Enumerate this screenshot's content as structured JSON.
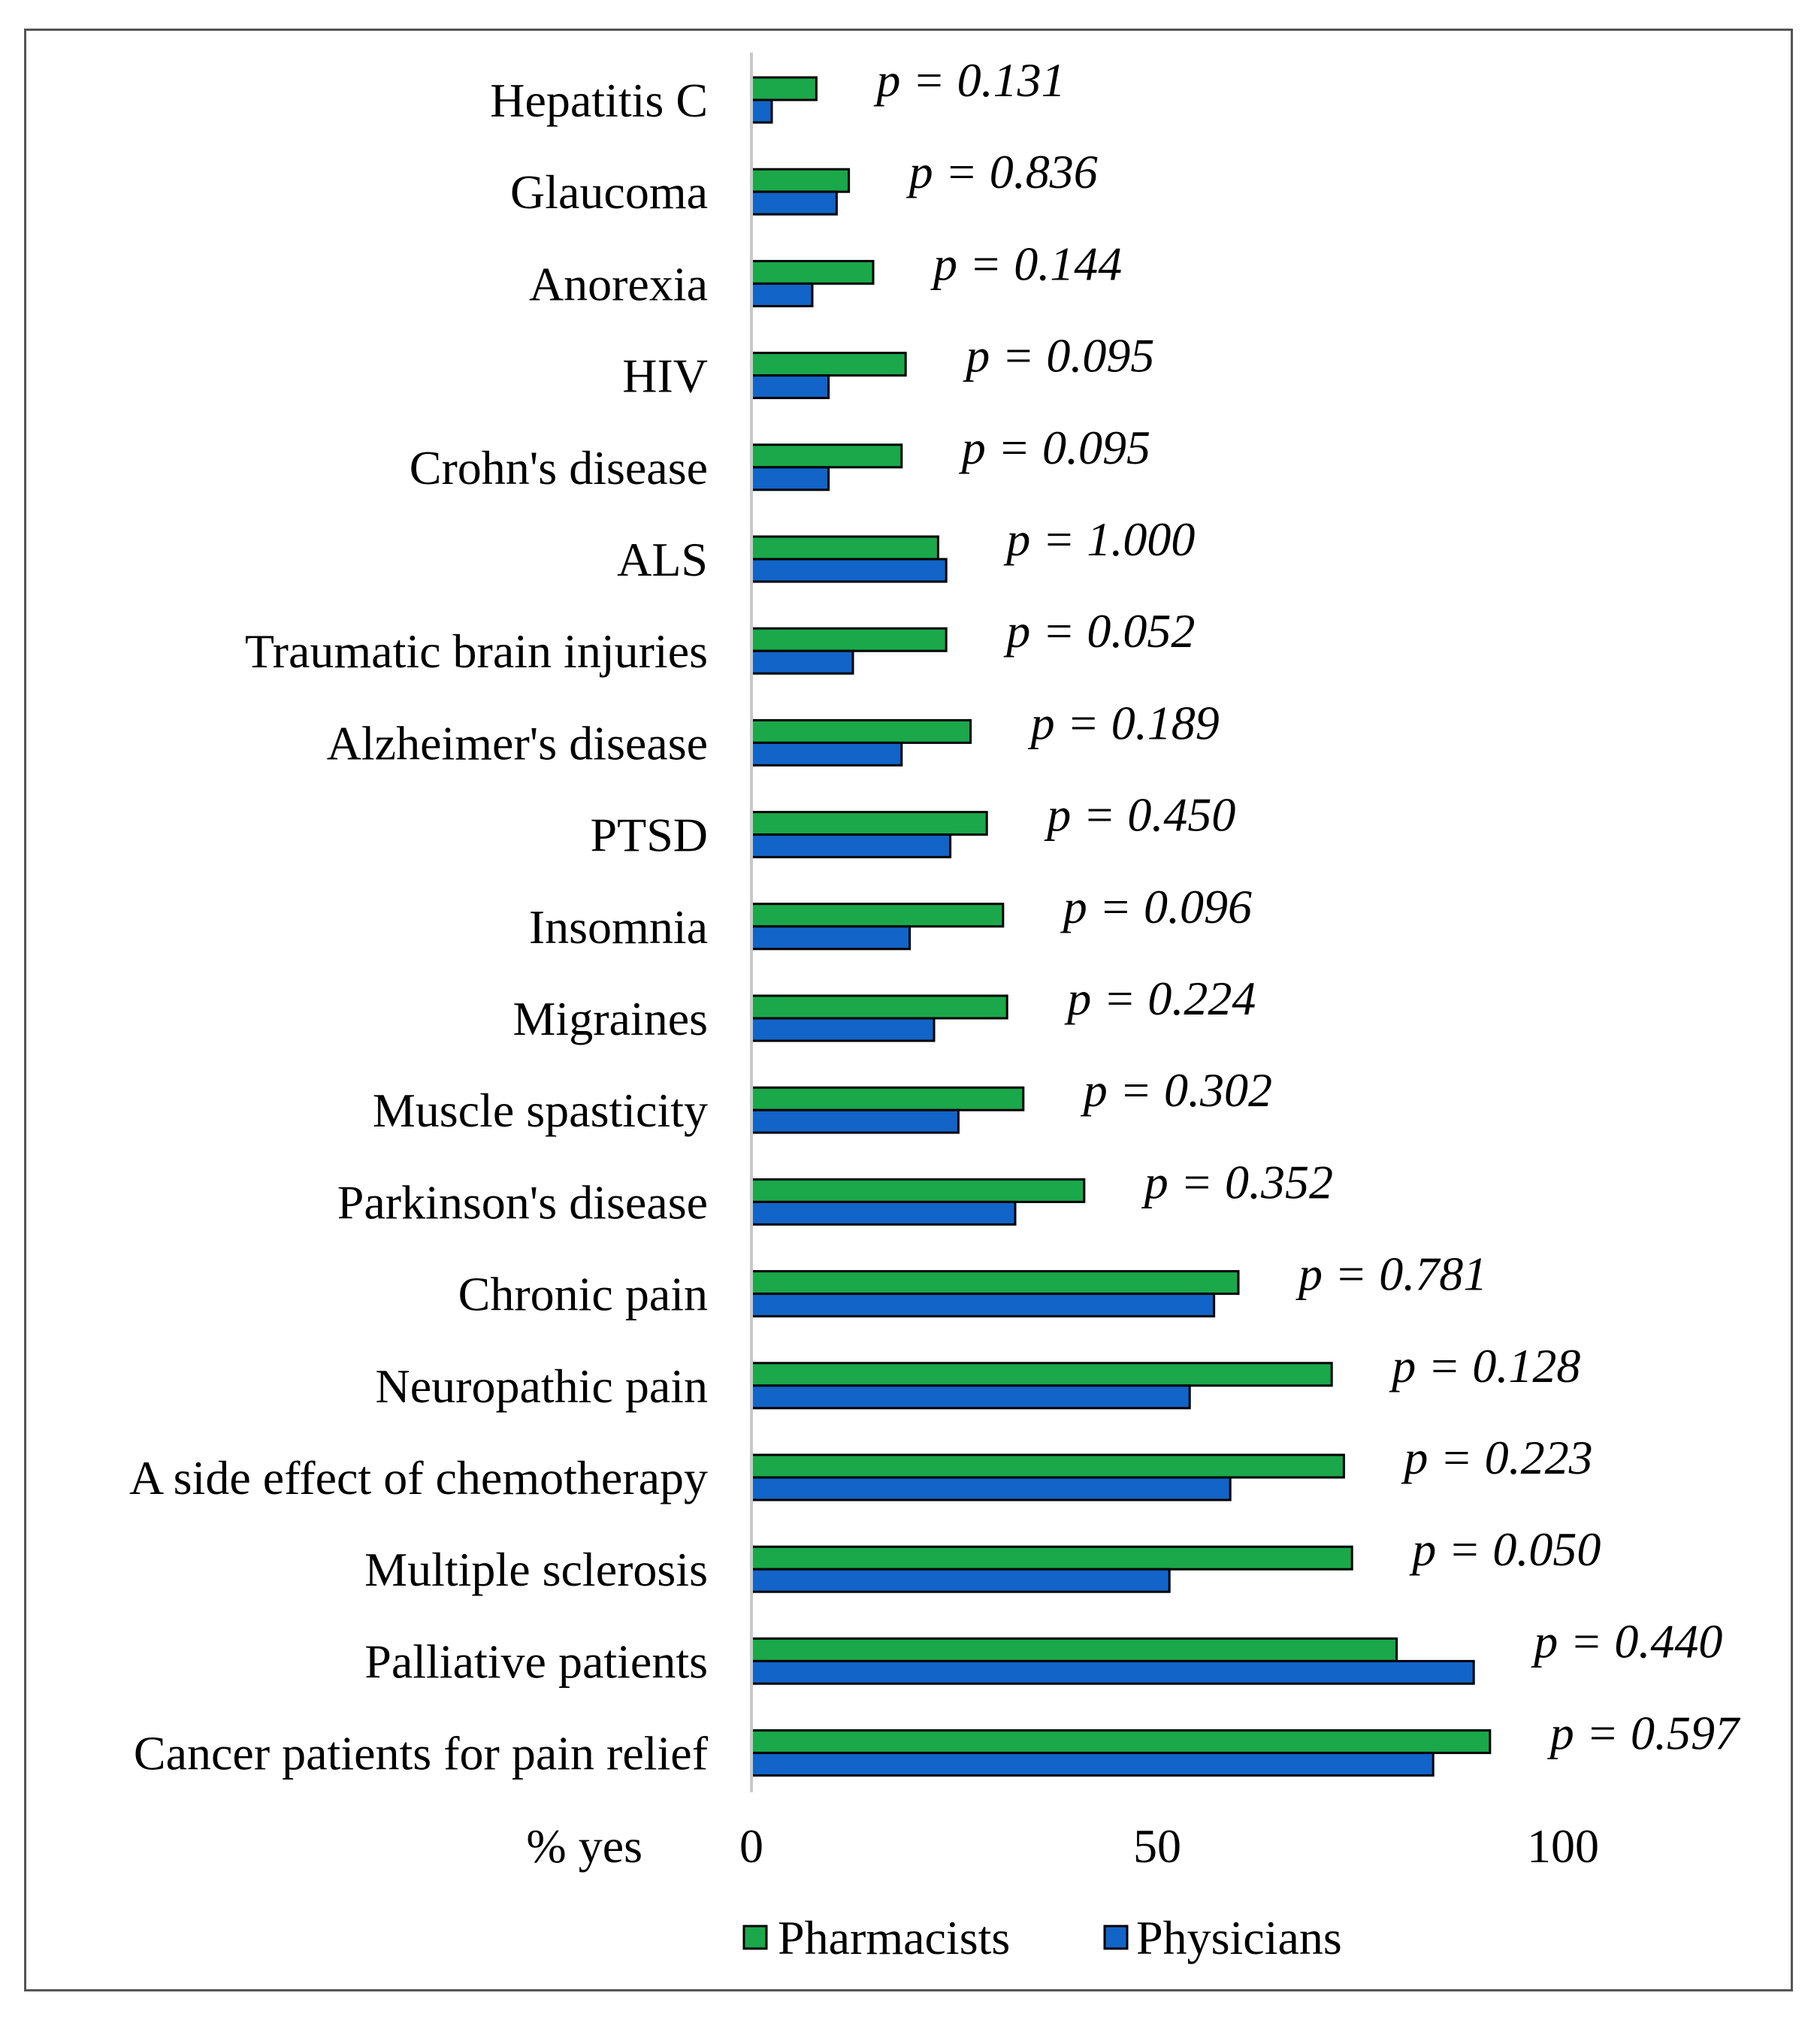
{
  "chart_data": {
    "type": "bar",
    "orientation": "horizontal",
    "title": "",
    "xlabel": "% yes",
    "ylabel": "",
    "xlim": [
      0,
      100
    ],
    "xticks": [
      "0",
      "50",
      "100"
    ],
    "categories": [
      "Hepatitis C",
      "Glaucoma",
      "Anorexia",
      "HIV",
      "Crohn's disease",
      "ALS",
      "Traumatic brain injuries",
      "Alzheimer's disease",
      "PTSD",
      "Insomnia",
      "Migraines",
      "Muscle spasticity",
      "Parkinson's disease",
      "Chronic pain",
      "Neuropathic pain",
      "A side effect of chemotherapy",
      "Multiple sclerosis",
      "Palliative patients",
      "Cancer patients for pain relief"
    ],
    "series": [
      {
        "name": "Pharmacists",
        "color": "#1aa84a",
        "values": [
          8,
          12,
          15,
          19,
          18.5,
          23,
          24,
          27,
          29,
          31,
          31.5,
          33.5,
          41,
          60,
          71.5,
          73,
          74,
          79.5,
          91
        ]
      },
      {
        "name": "Physicians",
        "color": "#1264c8",
        "values": [
          2.5,
          10.5,
          7.5,
          9.5,
          9.5,
          24,
          12.5,
          18.5,
          24.5,
          19.5,
          22.5,
          25.5,
          32.5,
          57,
          54,
          59,
          51.5,
          89,
          84
        ]
      }
    ],
    "annotations": [
      "p = 0.131",
      "p = 0.836",
      "p = 0.144",
      "p = 0.095",
      "p = 0.095",
      "p = 1.000",
      "p = 0.052",
      "p = 0.189",
      "p = 0.450",
      "p = 0.096",
      "p = 0.224",
      "p = 0.302",
      "p = 0.352",
      "p = 0.781",
      "p = 0.128",
      "p = 0.223",
      "p = 0.050",
      "p = 0.440",
      "p = 0.597"
    ],
    "legend": {
      "position": "bottom",
      "entries": [
        "Pharmacists",
        "Physicians"
      ]
    }
  }
}
